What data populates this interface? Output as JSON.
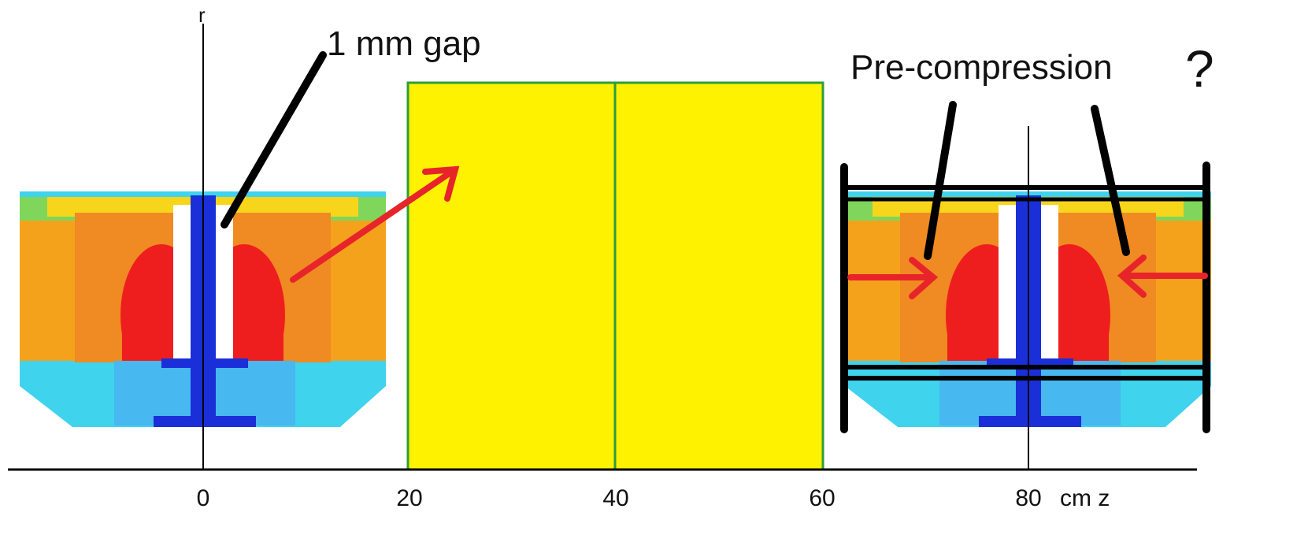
{
  "axis": {
    "r_label": "r",
    "ticks": [
      0,
      20,
      40,
      60,
      80
    ],
    "z_label": "cm z"
  },
  "annotations": {
    "gap": "1 mm gap",
    "precompression": "Pre-compression",
    "question": "?"
  }
}
